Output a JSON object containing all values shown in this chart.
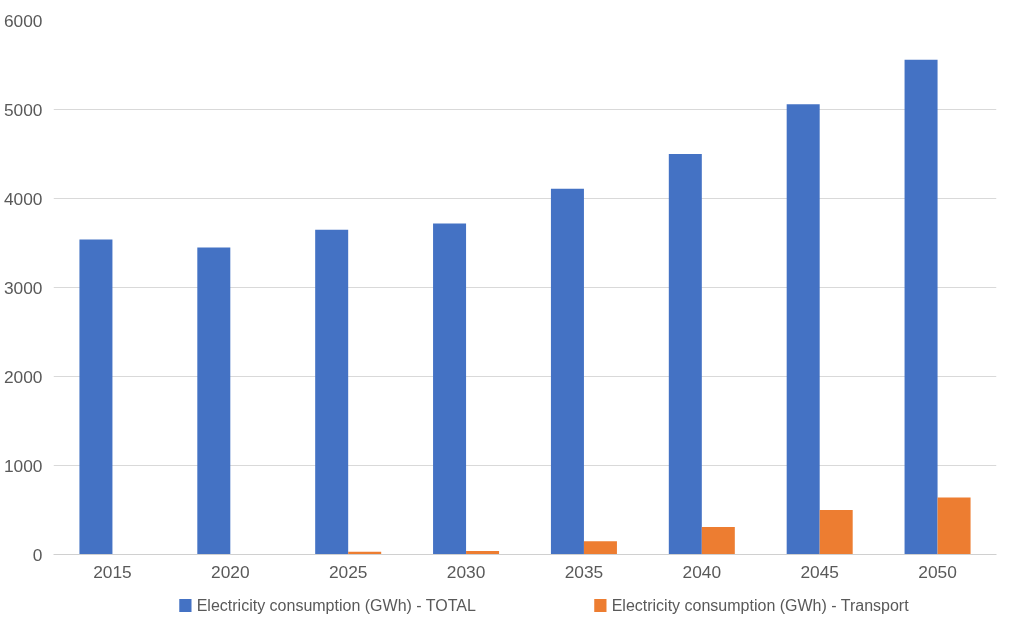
{
  "chart_data": {
    "type": "bar",
    "categories": [
      "2015",
      "2020",
      "2025",
      "2030",
      "2035",
      "2040",
      "2045",
      "2050"
    ],
    "series": [
      {
        "name": "Electricity consumption (GWh) - TOTAL",
        "color": "#4472c4",
        "values": [
          3540,
          3450,
          3650,
          3720,
          4110,
          4500,
          5060,
          5560
        ]
      },
      {
        "name": "Electricity consumption (GWh) - Transport",
        "color": "#ed7d31",
        "values": [
          0,
          0,
          30,
          40,
          150,
          310,
          500,
          640
        ]
      }
    ],
    "ylim": [
      0,
      6000
    ],
    "yticks": [
      0,
      1000,
      2000,
      3000,
      4000,
      5000,
      6000
    ],
    "grid": "y",
    "legend": "bottom"
  }
}
